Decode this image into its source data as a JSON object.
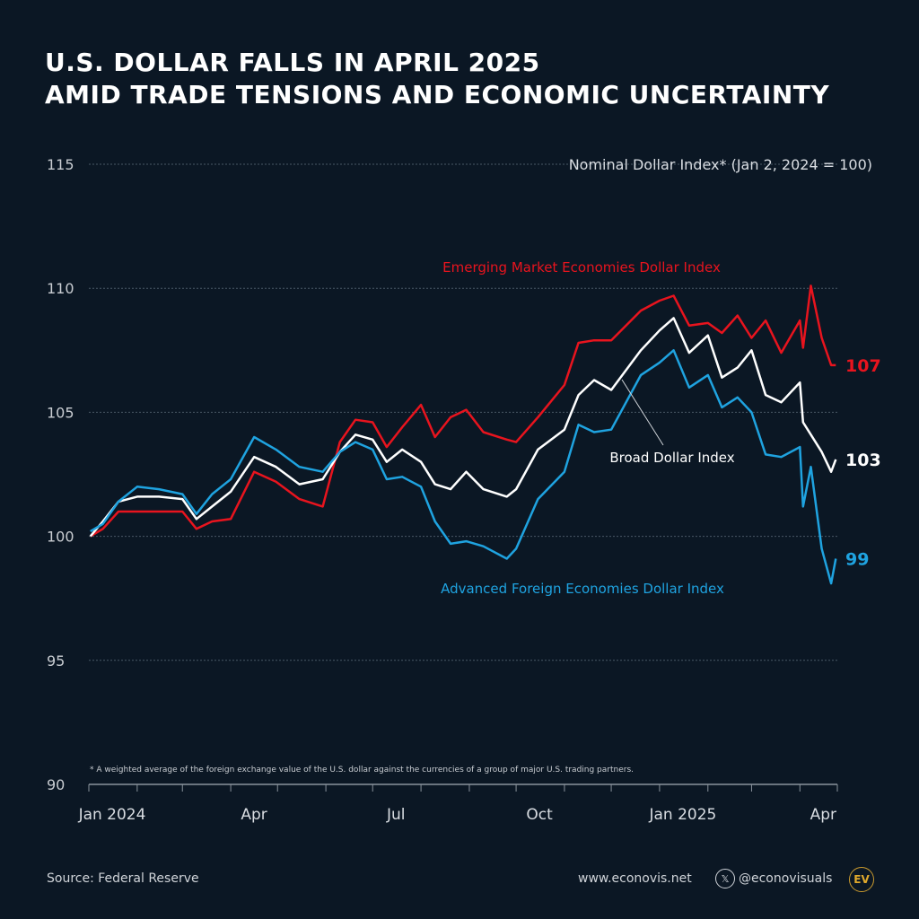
{
  "title": {
    "line1": "U.S. DOLLAR FALLS IN APRIL 2025",
    "line2": "AMID TRADE TENSIONS AND ECONOMIC UNCERTAINTY"
  },
  "footer": {
    "source": "Source: Federal Reserve",
    "website": "www.econovis.net",
    "handle": "@econovisuals",
    "x_icon": "x-logo-icon",
    "logo": "EV"
  },
  "chart_data": {
    "type": "line",
    "title": "Nominal Dollar Index* (Jan 2, 2024 = 100)",
    "footnote": "* A weighted average of the foreign exchange value of the U.S. dollar against the currencies of a group of major U.S. trading partners.",
    "xlabel": "",
    "ylabel": "",
    "xlim": [
      "2024-01-01",
      "2025-04-25"
    ],
    "ylim": [
      90,
      115
    ],
    "yticks": [
      90,
      95,
      100,
      105,
      110,
      115
    ],
    "xtick_labels": [
      {
        "date": "2024-01-01",
        "label": "Jan 2024"
      },
      {
        "date": "2024-04-01",
        "label": "Apr"
      },
      {
        "date": "2024-07-01",
        "label": "Jul"
      },
      {
        "date": "2024-10-01",
        "label": "Oct"
      },
      {
        "date": "2025-01-01",
        "label": "Jan 2025"
      },
      {
        "date": "2025-04-01",
        "label": "Apr"
      }
    ],
    "grid": "horizontal dotted",
    "x": [
      "2024-01-02",
      "2024-01-10",
      "2024-01-20",
      "2024-02-01",
      "2024-02-15",
      "2024-03-01",
      "2024-03-10",
      "2024-03-20",
      "2024-04-01",
      "2024-04-16",
      "2024-04-30",
      "2024-05-15",
      "2024-05-30",
      "2024-06-10",
      "2024-06-20",
      "2024-07-01",
      "2024-07-10",
      "2024-07-20",
      "2024-08-01",
      "2024-08-10",
      "2024-08-20",
      "2024-08-30",
      "2024-09-10",
      "2024-09-25",
      "2024-10-01",
      "2024-10-15",
      "2024-11-01",
      "2024-11-10",
      "2024-11-20",
      "2024-12-01",
      "2024-12-20",
      "2025-01-01",
      "2025-01-10",
      "2025-01-20",
      "2025-02-01",
      "2025-02-10",
      "2025-02-20",
      "2025-03-01",
      "2025-03-10",
      "2025-03-20",
      "2025-04-01",
      "2025-04-03",
      "2025-04-08",
      "2025-04-15",
      "2025-04-21",
      "2025-04-24"
    ],
    "series": [
      {
        "name": "Emerging Market Economies Dollar Index",
        "color": "#e8141e",
        "end_label": "107",
        "values": [
          100.0,
          100.3,
          101.0,
          101.0,
          101.0,
          101.0,
          100.3,
          100.6,
          100.7,
          102.6,
          102.2,
          101.5,
          101.2,
          103.8,
          104.7,
          104.6,
          103.6,
          104.4,
          105.3,
          104.0,
          104.8,
          105.1,
          104.2,
          103.9,
          103.8,
          104.8,
          106.1,
          107.8,
          107.9,
          107.9,
          109.1,
          109.5,
          109.7,
          108.5,
          108.6,
          108.2,
          108.9,
          108.0,
          108.7,
          107.4,
          108.7,
          107.6,
          110.1,
          108.0,
          106.9,
          106.9
        ]
      },
      {
        "name": "Broad Dollar Index",
        "color": "#ffffff",
        "end_label": "103",
        "values": [
          100.0,
          100.6,
          101.4,
          101.6,
          101.6,
          101.5,
          100.7,
          101.2,
          101.8,
          103.2,
          102.8,
          102.1,
          102.3,
          103.4,
          104.1,
          103.9,
          103.0,
          103.5,
          103.0,
          102.1,
          101.9,
          102.6,
          101.9,
          101.6,
          101.9,
          103.5,
          104.3,
          105.7,
          106.3,
          105.9,
          107.5,
          108.3,
          108.8,
          107.4,
          108.1,
          106.4,
          106.8,
          107.5,
          105.7,
          105.4,
          106.2,
          104.6,
          104.1,
          103.4,
          102.6,
          103.1
        ]
      },
      {
        "name": "Advanced Foreign Economies Dollar Index",
        "color": "#1fa3e0",
        "end_label": "99",
        "values": [
          100.2,
          100.5,
          101.4,
          102.0,
          101.9,
          101.7,
          100.9,
          101.7,
          102.3,
          104.0,
          103.5,
          102.8,
          102.6,
          103.4,
          103.8,
          103.5,
          102.3,
          102.4,
          102.0,
          100.6,
          99.7,
          99.8,
          99.6,
          99.1,
          99.5,
          101.5,
          102.6,
          104.5,
          104.2,
          104.3,
          106.5,
          107.0,
          107.5,
          106.0,
          106.5,
          105.2,
          105.6,
          105.0,
          103.3,
          103.2,
          103.6,
          101.2,
          102.8,
          99.5,
          98.1,
          99.1
        ]
      }
    ]
  }
}
